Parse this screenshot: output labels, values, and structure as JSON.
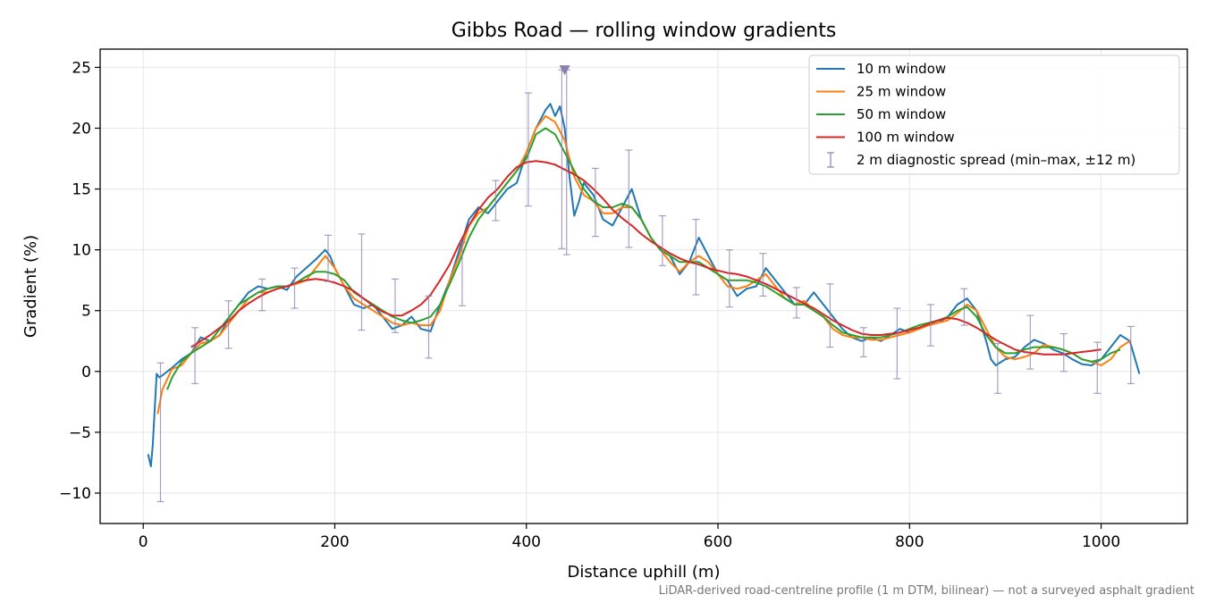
{
  "footnote": "LiDAR-derived road-centreline profile (1 m DTM, bilinear) — not a surveyed asphalt gradient",
  "chart_data": {
    "type": "line",
    "title": "Gibbs Road — rolling window gradients",
    "xlabel": "Distance uphill (m)",
    "ylabel": "Gradient (%)",
    "xlim": [
      -45,
      1090
    ],
    "ylim": [
      -12.5,
      26.5
    ],
    "xticks": [
      0,
      200,
      400,
      600,
      800,
      1000
    ],
    "yticks": [
      -10,
      -5,
      0,
      5,
      10,
      15,
      20,
      25
    ],
    "ytick_labels": [
      "−10",
      "−5",
      "0",
      "5",
      "10",
      "15",
      "20",
      "25"
    ],
    "grid": true,
    "legend_position": "top-right",
    "series": [
      {
        "name": "10 m window",
        "color": "#1f77b4",
        "x": [
          5,
          8,
          10,
          14,
          17,
          22,
          30,
          40,
          50,
          60,
          70,
          80,
          90,
          100,
          110,
          120,
          130,
          140,
          150,
          160,
          170,
          180,
          190,
          195,
          200,
          210,
          220,
          230,
          240,
          250,
          260,
          270,
          280,
          290,
          300,
          310,
          320,
          330,
          340,
          350,
          360,
          370,
          380,
          390,
          400,
          410,
          420,
          425,
          430,
          435,
          440,
          445,
          450,
          455,
          460,
          470,
          480,
          490,
          500,
          510,
          520,
          530,
          540,
          550,
          560,
          570,
          580,
          590,
          600,
          610,
          620,
          630,
          640,
          650,
          660,
          670,
          680,
          690,
          700,
          710,
          720,
          730,
          740,
          750,
          760,
          770,
          780,
          790,
          800,
          810,
          820,
          830,
          840,
          850,
          860,
          870,
          880,
          885,
          890,
          900,
          910,
          920,
          930,
          940,
          950,
          960,
          970,
          980,
          990,
          1000,
          1010,
          1020,
          1030,
          1040
        ],
        "y": [
          -6.8,
          -7.8,
          -6,
          -0.2,
          -0.5,
          -0.2,
          0.3,
          1,
          1.5,
          2.8,
          2.5,
          3,
          4.5,
          5.5,
          6.5,
          7,
          6.8,
          7,
          6.7,
          7.8,
          8.5,
          9.2,
          10,
          9.5,
          8.5,
          7,
          5.5,
          5.2,
          5.5,
          4.5,
          3.5,
          3.8,
          4.5,
          3.5,
          3.3,
          5.5,
          7.5,
          10,
          12.5,
          13.5,
          13,
          14,
          15,
          15.5,
          18,
          20,
          21.5,
          22,
          21,
          21.8,
          20,
          16,
          12.8,
          14,
          15.5,
          14.5,
          12.5,
          12,
          13.5,
          15,
          12.5,
          11,
          10,
          9.5,
          8,
          9,
          11,
          9.5,
          8,
          7.5,
          6.2,
          6.8,
          7,
          8.5,
          7.5,
          6.5,
          5.5,
          5.5,
          6.5,
          5.5,
          4.5,
          3.5,
          2.8,
          2.5,
          2.8,
          2.5,
          3,
          3.5,
          3.2,
          3.5,
          3.8,
          4,
          4.5,
          5.5,
          6,
          5,
          2.5,
          1,
          0.5,
          1,
          1.2,
          2,
          2.6,
          2.3,
          1.8,
          1.5,
          1,
          0.6,
          0.5,
          1,
          2,
          3,
          2.5,
          -0.2
        ]
      },
      {
        "name": "25 m window",
        "color": "#ff7f0e",
        "x": [
          15,
          20,
          30,
          40,
          50,
          60,
          70,
          80,
          90,
          100,
          110,
          120,
          130,
          140,
          150,
          160,
          170,
          180,
          190,
          200,
          210,
          220,
          230,
          240,
          250,
          260,
          270,
          280,
          290,
          300,
          310,
          320,
          330,
          340,
          350,
          360,
          370,
          380,
          390,
          400,
          410,
          420,
          430,
          440,
          450,
          460,
          470,
          480,
          490,
          500,
          510,
          520,
          530,
          540,
          550,
          560,
          570,
          580,
          590,
          600,
          610,
          620,
          630,
          640,
          650,
          660,
          670,
          680,
          690,
          700,
          710,
          720,
          730,
          740,
          750,
          760,
          770,
          780,
          790,
          800,
          810,
          820,
          830,
          840,
          850,
          860,
          870,
          880,
          890,
          900,
          910,
          920,
          930,
          940,
          950,
          960,
          970,
          980,
          990,
          1000,
          1010,
          1020,
          1030
        ],
        "y": [
          -3.5,
          -1.5,
          0.2,
          0.5,
          1.5,
          2.3,
          2.5,
          3,
          4,
          5,
          6,
          6.5,
          6.5,
          6.8,
          7,
          7.2,
          7.5,
          8.5,
          9.5,
          8.5,
          7,
          6,
          5.5,
          5,
          4.5,
          4,
          3.8,
          4,
          3.8,
          3.8,
          5,
          7.5,
          9.5,
          12,
          13,
          13.5,
          14.5,
          15.5,
          16.5,
          18,
          20,
          21,
          20.5,
          19,
          16,
          14.5,
          14,
          13,
          13,
          13.5,
          13.5,
          12.5,
          11,
          10,
          9,
          8.2,
          9,
          9.5,
          9,
          8,
          7,
          6.8,
          7,
          7.5,
          8,
          7,
          6,
          5.5,
          5.8,
          5,
          4.5,
          3.5,
          3,
          2.8,
          2.8,
          2.6,
          2.6,
          2.8,
          3,
          3.2,
          3.5,
          3.8,
          4,
          4.2,
          4.8,
          5.5,
          5,
          3.5,
          2,
          1.2,
          1,
          1.2,
          1.5,
          2.2,
          2,
          1.8,
          1.5,
          1,
          0.8,
          0.5,
          1,
          2,
          2.5
        ]
      },
      {
        "name": "50 m window",
        "color": "#2ca02c",
        "x": [
          25,
          30,
          40,
          50,
          60,
          70,
          80,
          90,
          100,
          110,
          120,
          130,
          140,
          150,
          160,
          170,
          180,
          190,
          200,
          210,
          220,
          230,
          240,
          250,
          260,
          270,
          280,
          290,
          300,
          310,
          320,
          330,
          340,
          350,
          360,
          370,
          380,
          390,
          400,
          410,
          420,
          430,
          440,
          450,
          460,
          470,
          480,
          490,
          500,
          510,
          520,
          530,
          540,
          550,
          560,
          570,
          580,
          590,
          600,
          610,
          620,
          630,
          640,
          650,
          660,
          670,
          680,
          690,
          700,
          710,
          720,
          730,
          740,
          750,
          760,
          770,
          780,
          790,
          800,
          810,
          820,
          830,
          840,
          850,
          860,
          870,
          880,
          890,
          900,
          910,
          920,
          930,
          940,
          950,
          960,
          970,
          980,
          990,
          1000,
          1010,
          1020
        ],
        "y": [
          -1.5,
          -0.5,
          0.8,
          1.5,
          2,
          2.5,
          3.5,
          4.5,
          5.5,
          6,
          6.5,
          6.8,
          7,
          7,
          7.3,
          7.8,
          8.2,
          8.2,
          8,
          7.5,
          6.5,
          6,
          5.5,
          5,
          4.5,
          4.2,
          4,
          4.2,
          4.5,
          5.5,
          7.2,
          9,
          11,
          12.5,
          13.5,
          14.5,
          15.5,
          16.5,
          17.5,
          19.5,
          20,
          19.5,
          18,
          16.5,
          15,
          14,
          13.5,
          13.5,
          13.8,
          13.5,
          12.5,
          11,
          10,
          9.5,
          9,
          9,
          9,
          8.5,
          8,
          7.5,
          7.5,
          7.5,
          7.3,
          7,
          6.5,
          6,
          5.5,
          5.5,
          5,
          4.5,
          3.8,
          3.2,
          3,
          2.8,
          2.8,
          2.8,
          3,
          3.2,
          3.5,
          3.8,
          4,
          4.2,
          4.5,
          5,
          5.3,
          4.5,
          3,
          2,
          1.5,
          1.5,
          1.8,
          2,
          2,
          2,
          1.8,
          1.5,
          1,
          0.8,
          1,
          1.5,
          1.8
        ]
      },
      {
        "name": "100 m window",
        "color": "#d62728",
        "x": [
          50,
          60,
          70,
          80,
          90,
          100,
          110,
          120,
          130,
          140,
          150,
          160,
          170,
          180,
          190,
          200,
          210,
          220,
          230,
          240,
          250,
          260,
          270,
          280,
          290,
          300,
          310,
          320,
          330,
          340,
          350,
          360,
          370,
          380,
          390,
          400,
          410,
          420,
          430,
          440,
          450,
          460,
          470,
          480,
          490,
          500,
          510,
          520,
          530,
          540,
          550,
          560,
          570,
          580,
          590,
          600,
          610,
          620,
          630,
          640,
          650,
          660,
          670,
          680,
          690,
          700,
          710,
          720,
          730,
          740,
          750,
          760,
          770,
          780,
          790,
          800,
          810,
          820,
          830,
          840,
          850,
          860,
          870,
          880,
          890,
          900,
          910,
          920,
          930,
          940,
          950,
          960,
          970,
          980,
          990,
          1000
        ],
        "y": [
          2,
          2.5,
          3,
          3.6,
          4.2,
          5,
          5.6,
          6.1,
          6.5,
          6.8,
          7,
          7.3,
          7.5,
          7.6,
          7.5,
          7.3,
          7,
          6.6,
          6,
          5.4,
          4.9,
          4.6,
          4.6,
          5,
          5.5,
          6.3,
          7.5,
          8.8,
          10.5,
          12,
          13.3,
          14.3,
          15,
          16,
          16.8,
          17.2,
          17.3,
          17.2,
          17,
          16.6,
          16.2,
          15.7,
          15,
          14.2,
          13.3,
          12.6,
          12,
          11.3,
          10.7,
          10.2,
          9.7,
          9.3,
          9,
          8.8,
          8.5,
          8.3,
          8.1,
          8,
          7.8,
          7.5,
          7.2,
          6.8,
          6.4,
          6,
          5.6,
          5.2,
          4.7,
          4.2,
          3.8,
          3.4,
          3.1,
          3,
          3,
          3.1,
          3.2,
          3.4,
          3.6,
          3.9,
          4.2,
          4.4,
          4.3,
          4,
          3.6,
          3.1,
          2.6,
          2.2,
          1.8,
          1.6,
          1.5,
          1.4,
          1.4,
          1.4,
          1.5,
          1.6,
          1.7,
          1.8
        ]
      }
    ],
    "error_bars": {
      "name": "2 m diagnostic spread (min–max, ±12 m)",
      "color": "#8c7fb0",
      "points": [
        {
          "x": 18,
          "low": -10.7,
          "high": 0.7
        },
        {
          "x": 54,
          "low": -1,
          "high": 3.6
        },
        {
          "x": 89,
          "low": 1.9,
          "high": 5.8
        },
        {
          "x": 124,
          "low": 5,
          "high": 7.6
        },
        {
          "x": 158,
          "low": 5.2,
          "high": 8.5
        },
        {
          "x": 193,
          "low": 7.4,
          "high": 11.2
        },
        {
          "x": 228,
          "low": 3.4,
          "high": 11.3
        },
        {
          "x": 263,
          "low": 3.2,
          "high": 7.6
        },
        {
          "x": 298,
          "low": 1.1,
          "high": 6.2
        },
        {
          "x": 333,
          "low": 5.4,
          "high": 10.6
        },
        {
          "x": 368,
          "low": 12.4,
          "high": 15.7
        },
        {
          "x": 402,
          "low": 13.6,
          "high": 22.9
        },
        {
          "x": 437,
          "low": 10.1,
          "high": 24.8
        },
        {
          "x": 442,
          "low": 9.6,
          "high": 24.8
        },
        {
          "x": 472,
          "low": 11.1,
          "high": 16.7
        },
        {
          "x": 507,
          "low": 10.2,
          "high": 18.2
        },
        {
          "x": 542,
          "low": 8.7,
          "high": 12.8
        },
        {
          "x": 577,
          "low": 6.3,
          "high": 12.5
        },
        {
          "x": 612,
          "low": 5.3,
          "high": 10
        },
        {
          "x": 647,
          "low": 6.2,
          "high": 9.7
        },
        {
          "x": 682,
          "low": 4.4,
          "high": 6.9
        },
        {
          "x": 717,
          "low": 2,
          "high": 7.2
        },
        {
          "x": 752,
          "low": 1.2,
          "high": 3.6
        },
        {
          "x": 787,
          "low": -0.6,
          "high": 5.2
        },
        {
          "x": 822,
          "low": 2.1,
          "high": 5.5
        },
        {
          "x": 857,
          "low": 3.8,
          "high": 6.8
        },
        {
          "x": 892,
          "low": -1.8,
          "high": 2.3
        },
        {
          "x": 926,
          "low": 0.2,
          "high": 4.6
        },
        {
          "x": 961,
          "low": 0,
          "high": 3.1
        },
        {
          "x": 996,
          "low": -1.8,
          "high": 2.4
        },
        {
          "x": 1031,
          "low": -1,
          "high": 3.7
        }
      ]
    },
    "marker": {
      "x": 440,
      "y": 24.8,
      "shape": "triangle-down",
      "color": "#8c7fb0"
    }
  }
}
